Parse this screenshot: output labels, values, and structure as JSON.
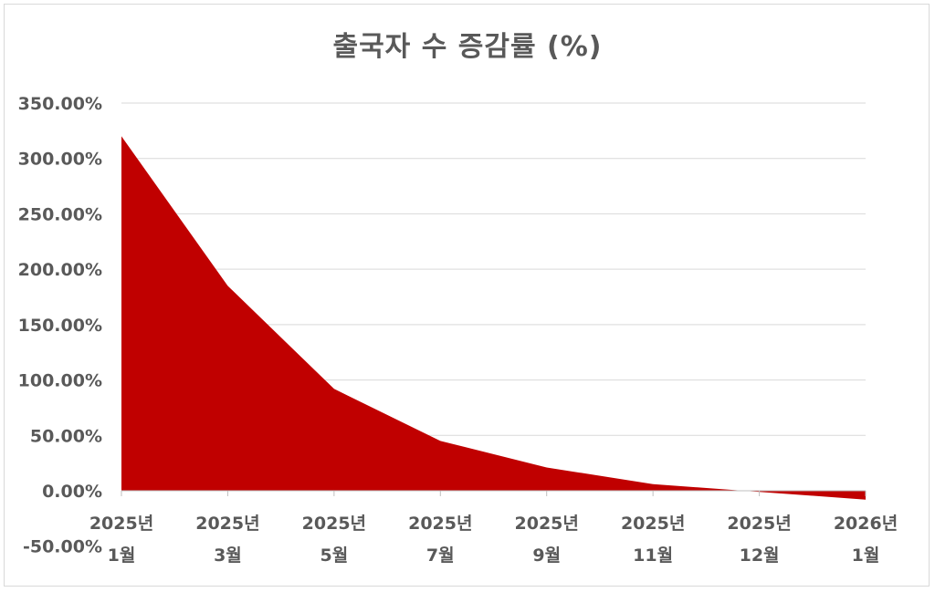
{
  "chart_data": {
    "type": "area",
    "title": "출국자 수 증감률 (%)",
    "xlabel": "",
    "ylabel": "",
    "categories": [
      [
        "2025년",
        "1월"
      ],
      [
        "2025년",
        "3월"
      ],
      [
        "2025년",
        "5월"
      ],
      [
        "2025년",
        "7월"
      ],
      [
        "2025년",
        "9월"
      ],
      [
        "2025년",
        "11월"
      ],
      [
        "2025년",
        "12월"
      ],
      [
        "2026년",
        "1월"
      ]
    ],
    "series": [
      {
        "values": [
          320,
          185,
          92,
          45,
          21,
          6,
          -1,
          -8
        ],
        "color": "#c00000"
      }
    ],
    "ylim": [
      -50,
      350
    ],
    "yticks": [
      "-50.00%",
      "0.00%",
      "50.00%",
      "100.00%",
      "150.00%",
      "200.00%",
      "250.00%",
      "300.00%",
      "350.00%"
    ],
    "ytick_values": [
      -50,
      0,
      50,
      100,
      150,
      200,
      250,
      300,
      350
    ],
    "grid": true,
    "legend": "none"
  }
}
